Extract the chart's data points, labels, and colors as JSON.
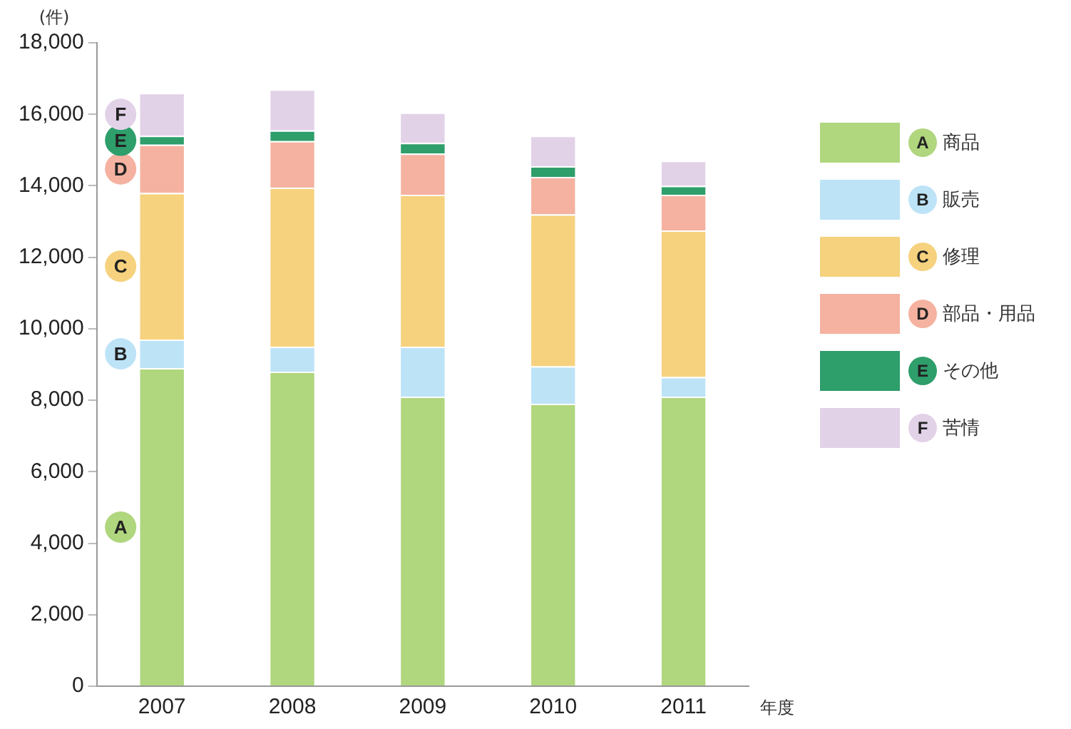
{
  "chart_data": {
    "type": "bar",
    "stacked": true,
    "ylabel": "(件)",
    "xlabel": "年度",
    "categories": [
      "2007",
      "2008",
      "2009",
      "2010",
      "2011"
    ],
    "series": [
      {
        "name": "A 商品",
        "color": "#b0d67e",
        "values": [
          8900,
          8800,
          8100,
          7900,
          8100
        ]
      },
      {
        "name": "B 販売",
        "color": "#bde3f7",
        "values": [
          800,
          700,
          1400,
          1050,
          550
        ]
      },
      {
        "name": "C 修理",
        "color": "#f6d27e",
        "values": [
          4100,
          4450,
          4250,
          4250,
          4100
        ]
      },
      {
        "name": "D 部品・用品",
        "color": "#f5b2a0",
        "values": [
          1350,
          1300,
          1150,
          1050,
          1000
        ]
      },
      {
        "name": "E その他",
        "color": "#2e9e6b",
        "values": [
          250,
          300,
          300,
          300,
          250
        ]
      },
      {
        "name": "F 苦情",
        "color": "#e2d2e8",
        "values": [
          1200,
          1150,
          850,
          850,
          700
        ]
      }
    ],
    "annotations": [
      "A",
      "B",
      "C",
      "D",
      "E",
      "F"
    ],
    "ylim": [
      0,
      18000
    ],
    "yticks": [
      0,
      {
        "value": 2000,
        "label": "2,000"
      },
      {
        "value": 4000,
        "label": "4,000"
      },
      {
        "value": 6000,
        "label": "6,000"
      },
      {
        "value": 8000,
        "label": "8,000"
      },
      {
        "value": 10000,
        "label": "10,000"
      },
      {
        "value": 12000,
        "label": "12,000"
      },
      {
        "value": 14000,
        "label": "14,000"
      },
      {
        "value": 16000,
        "label": "16,000"
      },
      {
        "value": 18000,
        "label": "18,000"
      }
    ],
    "grid": false,
    "legend": "right"
  }
}
